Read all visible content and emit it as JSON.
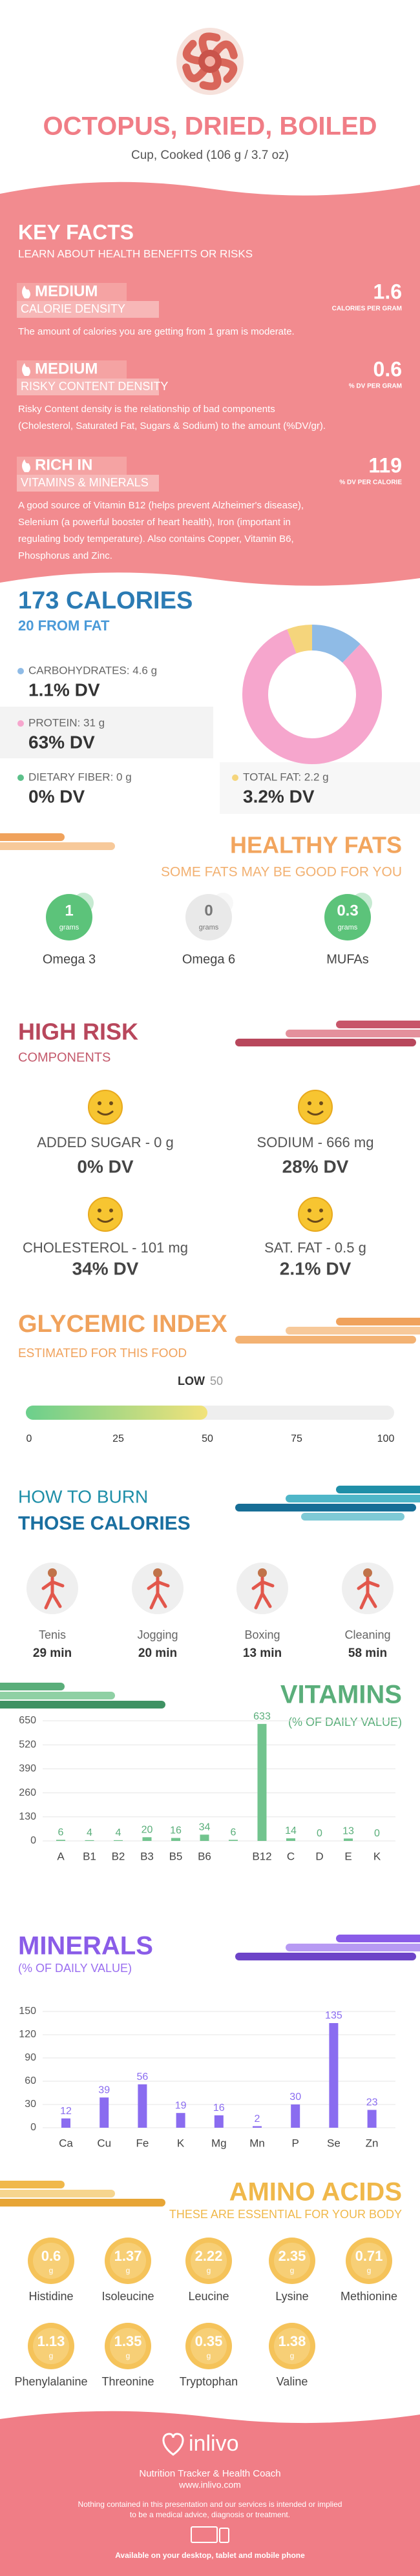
{
  "header": {
    "title": "OCTOPUS, DRIED, BOILED",
    "subtitle": "Cup, Cooked (106 g / 3.7 oz)"
  },
  "key_facts": {
    "title": "KEY FACTS",
    "subtitle": "LEARN ABOUT HEALTH BENEFITS OR RISKS",
    "items": [
      {
        "level": "MEDIUM",
        "name": "CALORIE DENSITY",
        "value": 1.6,
        "unit": "CALORIES PER GRAM",
        "description": [
          "The amount of calories you are getting from 1 gram is moderate."
        ]
      },
      {
        "level": "MEDIUM",
        "name": "RISKY CONTENT DENSITY",
        "value": 0.6,
        "unit": "% DV PER GRAM",
        "description": [
          "Risky Content density is the relationship of bad components",
          "(Cholesterol, Saturated Fat, Sugars & Sodium) to the amount (%DV/gr)."
        ]
      },
      {
        "level": "RICH IN",
        "name": "VITAMINS & MINERALS",
        "value": 119,
        "unit": "% DV PER CALORIE",
        "description": [
          "A good source of Vitamin B12 (helps prevent Alzheimer's disease),",
          "Selenium (a powerful booster of heart health), Iron (important in",
          "regulating body temperature). Also contains Copper, Vitamin B6,",
          "Phosphorus and Zinc."
        ]
      }
    ]
  },
  "calories": {
    "title": "173 CALORIES",
    "subtitle": "20 FROM FAT",
    "macros": [
      {
        "label": "CARBOHYDRATES: 4.6 g",
        "value": 4.6,
        "dv": "1.1% DV",
        "color": "#8fbbe6"
      },
      {
        "label": "PROTEIN: 31 g",
        "value": 31,
        "dv": "63% DV",
        "color": "#f6a6cd"
      },
      {
        "label": "DIETARY FIBER: 0 g",
        "value": 0,
        "dv": "0% DV",
        "color": "#5cc08a"
      },
      {
        "label": "TOTAL FAT: 2.2 g",
        "value": 2.2,
        "dv": "3.2% DV",
        "color": "#f5d57c"
      }
    ]
  },
  "healthy_fats": {
    "title": "HEALTHY FATS",
    "subtitle": "SOME FATS MAY BE GOOD FOR YOU",
    "items": [
      {
        "name": "Omega 3",
        "value": 1,
        "unit": "grams",
        "color": "#5cc37a",
        "text_color": "#ffffff"
      },
      {
        "name": "Omega 6",
        "value": 0,
        "unit": "grams",
        "color": "#e9e9e9",
        "text_color": "#777777"
      },
      {
        "name": "MUFAs",
        "value": 0.3,
        "unit": "grams",
        "color": "#5cc37a",
        "text_color": "#ffffff"
      }
    ]
  },
  "high_risk": {
    "title": "HIGH RISK",
    "subtitle": "COMPONENTS",
    "items": [
      {
        "name": "ADDED SUGAR - 0 g",
        "dv": "0% DV"
      },
      {
        "name": "SODIUM - 666 mg",
        "dv": "28% DV"
      },
      {
        "name": "CHOLESTEROL - 101 mg",
        "dv": "34% DV"
      },
      {
        "name": "SAT. FAT - 0.5 g",
        "dv": "2.1% DV"
      }
    ]
  },
  "glycemic_index": {
    "title": "GLYCEMIC INDEX",
    "subtitle": "ESTIMATED FOR THIS FOOD",
    "level": "LOW",
    "value": 50,
    "xlim": [
      0,
      100
    ],
    "xticks": [
      0,
      25,
      50,
      75,
      100
    ]
  },
  "burn": {
    "title": "HOW TO BURN",
    "subtitle": "THOSE CALORIES",
    "activities": [
      {
        "name": "Tenis",
        "time": "29 min"
      },
      {
        "name": "Jogging",
        "time": "20 min"
      },
      {
        "name": "Boxing",
        "time": "13 min"
      },
      {
        "name": "Cleaning",
        "time": "58 min"
      }
    ]
  },
  "vitamins": {
    "title": "VITAMINS",
    "subtitle": "(% OF DAILY VALUE)",
    "chart_data": {
      "type": "bar",
      "categories": [
        "A",
        "B1",
        "B2",
        "B3",
        "B5",
        "B6",
        null,
        "B12",
        "C",
        "D",
        "E",
        "K"
      ],
      "values": [
        6,
        4,
        4,
        20,
        16,
        34,
        6,
        633,
        14,
        0,
        13,
        0
      ],
      "color": "#72c48e",
      "ylim": [
        0,
        650
      ],
      "yticks": [
        0,
        130,
        260,
        390,
        520,
        650
      ],
      "grid": true
    }
  },
  "minerals": {
    "title": "MINERALS",
    "subtitle": "(% OF DAILY VALUE)",
    "chart_data": {
      "type": "bar",
      "categories": [
        "Ca",
        "Cu",
        "Fe",
        "K",
        "Mg",
        "Mn",
        "P",
        "Se",
        "Zn"
      ],
      "values": [
        12,
        39,
        56,
        19,
        16,
        2,
        30,
        135,
        23
      ],
      "color": "#8a6cf0",
      "ylim": [
        0,
        150
      ],
      "yticks": [
        0,
        30,
        60,
        90,
        120,
        150
      ],
      "grid": true
    }
  },
  "amino_acids": {
    "title": "AMINO ACIDS",
    "subtitle": "THESE ARE ESSENTIAL FOR YOUR BODY",
    "unit": "g",
    "items": [
      {
        "name": "Histidine",
        "value": 0.6
      },
      {
        "name": "Isoleucine",
        "value": 1.37
      },
      {
        "name": "Leucine",
        "value": 2.22
      },
      {
        "name": "Lysine",
        "value": 2.35
      },
      {
        "name": "Methionine",
        "value": 0.71
      },
      {
        "name": "Phenylalanine",
        "value": 1.13
      },
      {
        "name": "Threonine",
        "value": 1.35
      },
      {
        "name": "Tryptophan",
        "value": 0.35
      },
      {
        "name": "Valine",
        "value": 1.38
      }
    ]
  },
  "footer": {
    "brand": "inlivo",
    "tagline": "Nutrition Tracker & Health Coach",
    "website": "www.inlivo.com",
    "disclaimer": [
      "Nothing contained in this presentation and our services is intended or implied",
      "to be a medical advice, diagnosis or treatment."
    ],
    "availability": "Available on your desktop, tablet and mobile phone"
  }
}
